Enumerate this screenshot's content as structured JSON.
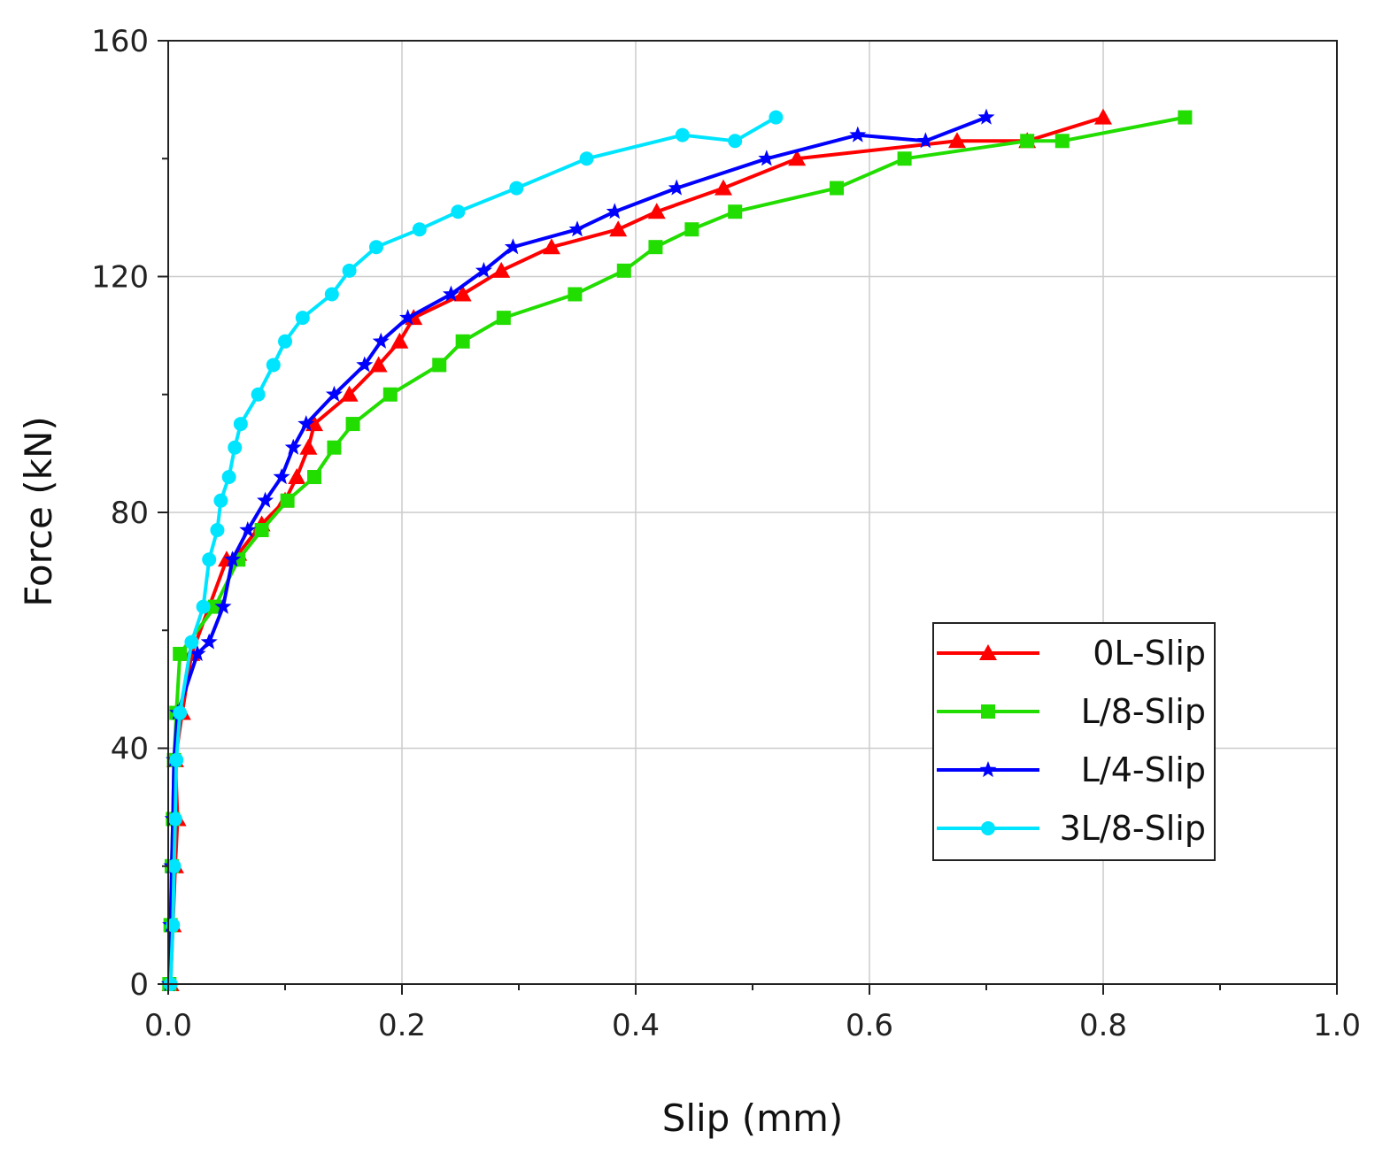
{
  "chart_data": {
    "type": "line",
    "title": "",
    "xlabel": "Slip (mm)",
    "ylabel": "Force (kN)",
    "xlim": [
      0.0,
      1.0
    ],
    "ylim": [
      0,
      160
    ],
    "xticks": [
      "0.0",
      "0.2",
      "0.4",
      "0.6",
      "0.8",
      "1.0"
    ],
    "yticks": [
      "0",
      "40",
      "80",
      "120",
      "160"
    ],
    "grid": true,
    "legend_position": "lower-right",
    "series": [
      {
        "name": "0L-Slip",
        "color": "#ff0000",
        "marker": "triangle",
        "points": [
          [
            0.002,
            0
          ],
          [
            0.004,
            10
          ],
          [
            0.006,
            20
          ],
          [
            0.008,
            28
          ],
          [
            0.006,
            38
          ],
          [
            0.012,
            46
          ],
          [
            0.02,
            56
          ],
          [
            0.05,
            72
          ],
          [
            0.06,
            73
          ],
          [
            0.08,
            78
          ],
          [
            0.1,
            82
          ],
          [
            0.11,
            86
          ],
          [
            0.12,
            91
          ],
          [
            0.125,
            95
          ],
          [
            0.155,
            100
          ],
          [
            0.18,
            105
          ],
          [
            0.198,
            109
          ],
          [
            0.21,
            113
          ],
          [
            0.252,
            117
          ],
          [
            0.285,
            121
          ],
          [
            0.328,
            125
          ],
          [
            0.385,
            128
          ],
          [
            0.418,
            131
          ],
          [
            0.475,
            135
          ],
          [
            0.538,
            140
          ],
          [
            0.675,
            143
          ],
          [
            0.735,
            143
          ],
          [
            0.8,
            147
          ]
        ]
      },
      {
        "name": "L/8-Slip",
        "color": "#22dd00",
        "marker": "square",
        "points": [
          [
            0.001,
            0
          ],
          [
            0.002,
            10
          ],
          [
            0.003,
            20
          ],
          [
            0.004,
            28
          ],
          [
            0.005,
            38
          ],
          [
            0.007,
            46
          ],
          [
            0.01,
            56
          ],
          [
            0.04,
            64
          ],
          [
            0.06,
            72
          ],
          [
            0.08,
            77
          ],
          [
            0.102,
            82
          ],
          [
            0.125,
            86
          ],
          [
            0.142,
            91
          ],
          [
            0.158,
            95
          ],
          [
            0.19,
            100
          ],
          [
            0.232,
            105
          ],
          [
            0.252,
            109
          ],
          [
            0.287,
            113
          ],
          [
            0.348,
            117
          ],
          [
            0.39,
            121
          ],
          [
            0.417,
            125
          ],
          [
            0.448,
            128
          ],
          [
            0.485,
            131
          ],
          [
            0.572,
            135
          ],
          [
            0.63,
            140
          ],
          [
            0.735,
            143
          ],
          [
            0.765,
            143
          ],
          [
            0.87,
            147
          ]
        ]
      },
      {
        "name": "L/4-Slip",
        "color": "#0000ff",
        "marker": "star",
        "points": [
          [
            0.001,
            0
          ],
          [
            0.002,
            10
          ],
          [
            0.003,
            20
          ],
          [
            0.004,
            28
          ],
          [
            0.005,
            38
          ],
          [
            0.008,
            46
          ],
          [
            0.025,
            56
          ],
          [
            0.035,
            58
          ],
          [
            0.047,
            64
          ],
          [
            0.055,
            72
          ],
          [
            0.068,
            77
          ],
          [
            0.083,
            82
          ],
          [
            0.097,
            86
          ],
          [
            0.107,
            91
          ],
          [
            0.118,
            95
          ],
          [
            0.142,
            100
          ],
          [
            0.168,
            105
          ],
          [
            0.182,
            109
          ],
          [
            0.205,
            113
          ],
          [
            0.242,
            117
          ],
          [
            0.27,
            121
          ],
          [
            0.295,
            125
          ],
          [
            0.35,
            128
          ],
          [
            0.382,
            131
          ],
          [
            0.435,
            135
          ],
          [
            0.512,
            140
          ],
          [
            0.59,
            144
          ],
          [
            0.648,
            143
          ],
          [
            0.7,
            147
          ]
        ]
      },
      {
        "name": "3L/8-Slip",
        "color": "#00e5ff",
        "marker": "circle",
        "points": [
          [
            0.002,
            0
          ],
          [
            0.004,
            10
          ],
          [
            0.005,
            20
          ],
          [
            0.006,
            28
          ],
          [
            0.007,
            38
          ],
          [
            0.01,
            46
          ],
          [
            0.02,
            58
          ],
          [
            0.03,
            64
          ],
          [
            0.035,
            72
          ],
          [
            0.042,
            77
          ],
          [
            0.045,
            82
          ],
          [
            0.052,
            86
          ],
          [
            0.057,
            91
          ],
          [
            0.062,
            95
          ],
          [
            0.077,
            100
          ],
          [
            0.09,
            105
          ],
          [
            0.1,
            109
          ],
          [
            0.115,
            113
          ],
          [
            0.14,
            117
          ],
          [
            0.155,
            121
          ],
          [
            0.178,
            125
          ],
          [
            0.215,
            128
          ],
          [
            0.248,
            131
          ],
          [
            0.298,
            135
          ],
          [
            0.358,
            140
          ],
          [
            0.44,
            144
          ],
          [
            0.485,
            143
          ],
          [
            0.52,
            147
          ]
        ]
      }
    ]
  }
}
